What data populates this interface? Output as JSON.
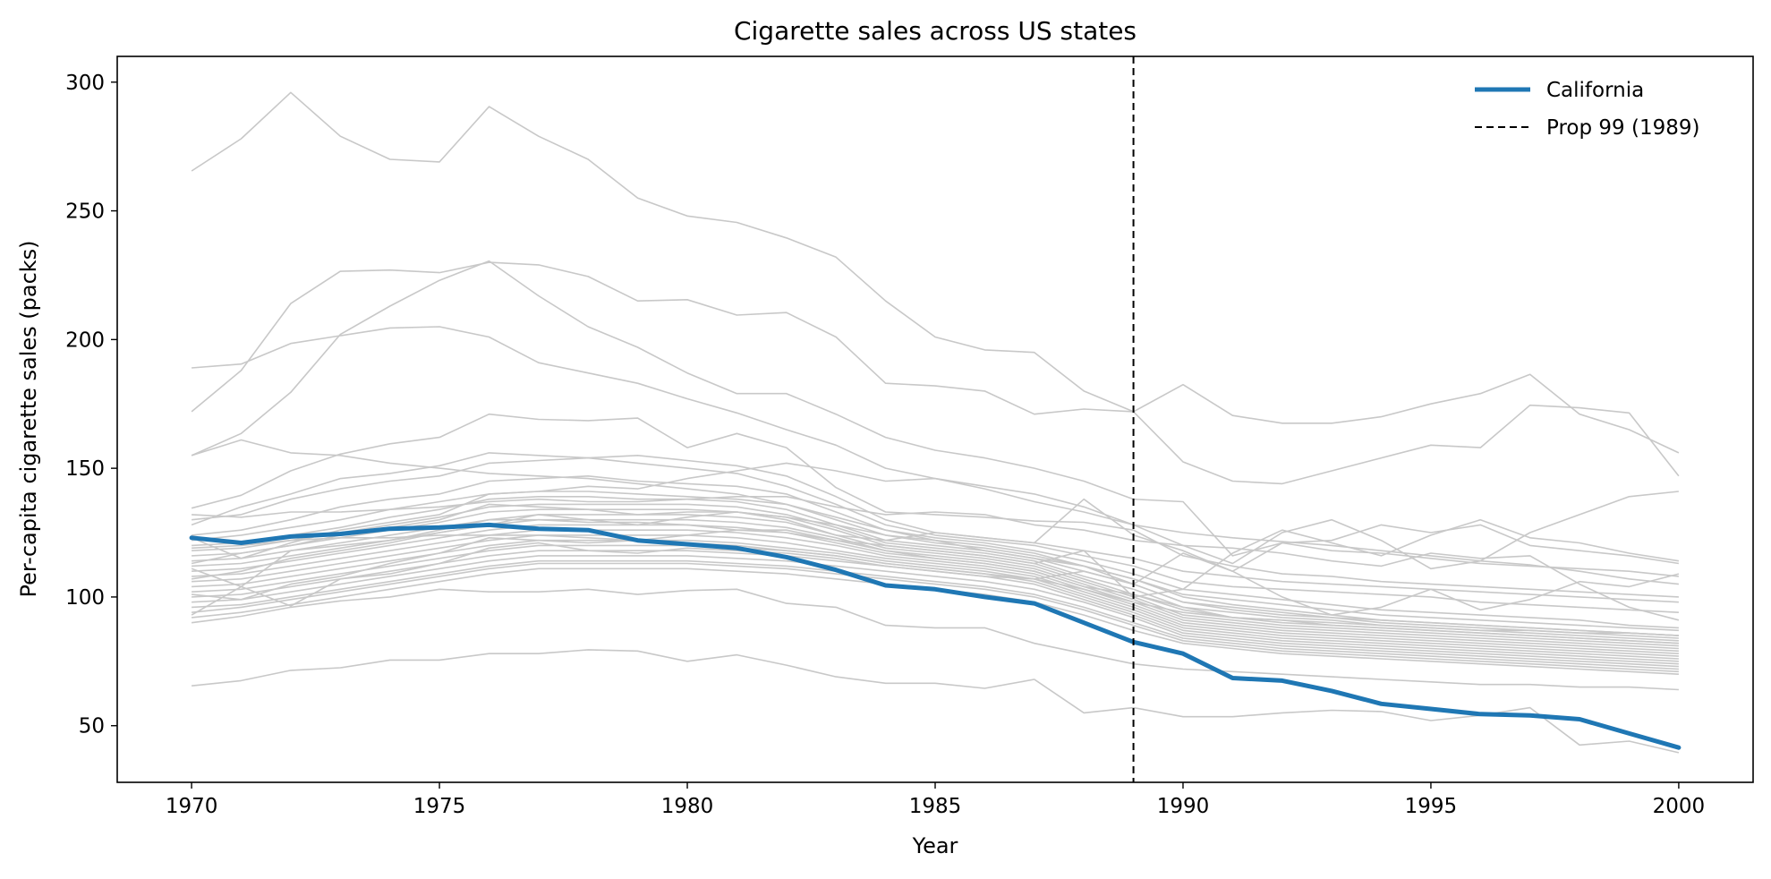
{
  "chart_data": {
    "type": "line",
    "title": "Cigarette sales across US states",
    "xlabel": "Year",
    "ylabel": "Per-capita cigarette sales (packs)",
    "xlim": [
      1968.5,
      2001.5
    ],
    "ylim": [
      28,
      310
    ],
    "x_ticks": [
      1970,
      1975,
      1980,
      1985,
      1990,
      1995,
      2000
    ],
    "y_ticks": [
      50,
      100,
      150,
      200,
      250,
      300
    ],
    "x": [
      1970,
      1971,
      1972,
      1973,
      1974,
      1975,
      1976,
      1977,
      1978,
      1979,
      1980,
      1981,
      1982,
      1983,
      1984,
      1985,
      1986,
      1987,
      1988,
      1989,
      1990,
      1991,
      1992,
      1993,
      1994,
      1995,
      1996,
      1997,
      1998,
      1999,
      2000
    ],
    "highlight_series": {
      "name": "California",
      "color": "#1f77b4",
      "values": [
        123,
        121,
        123.5,
        124.5,
        126.5,
        127,
        128,
        126.5,
        126,
        122,
        120.5,
        119,
        115.5,
        110.5,
        104.5,
        103,
        100,
        97.5,
        90,
        82.5,
        78,
        68.5,
        67.5,
        63.5,
        58.5,
        56.5,
        54.5,
        54,
        52.5,
        47,
        41.5
      ]
    },
    "vline": {
      "x": 1989,
      "label": "Prop 99 (1989)",
      "color": "#000000"
    },
    "background_series_color": "#c8c8c8",
    "background_series": [
      {
        "values": [
          265.5,
          278,
          296,
          279,
          270,
          269,
          290.5,
          279,
          270,
          255,
          248,
          245.5,
          239.5,
          232,
          215,
          201,
          196,
          195,
          180,
          172,
          182.5,
          170.5,
          167.5,
          167.5,
          170,
          175,
          179,
          186.5,
          171,
          165,
          156
        ]
      },
      {
        "values": [
          189,
          190.5,
          198.5,
          201.5,
          204.5,
          205,
          201,
          191,
          187,
          183,
          177,
          171.5,
          165,
          159,
          150,
          146,
          142,
          137,
          133,
          128,
          125,
          123,
          121.5,
          120,
          118,
          116,
          114,
          112.5,
          110,
          107,
          105
        ]
      },
      {
        "values": [
          172,
          188,
          214,
          226.5,
          227,
          226,
          230,
          229,
          224.5,
          215,
          215.5,
          209.5,
          210.5,
          201,
          183,
          182,
          180,
          171,
          173,
          172,
          152.5,
          145,
          144,
          149,
          154,
          159,
          158,
          174.5,
          173.5,
          171.5,
          147
        ]
      },
      {
        "values": [
          155,
          163.5,
          179.5,
          202,
          213,
          223,
          230.5,
          217,
          205,
          197,
          187,
          179,
          179,
          171,
          162,
          157,
          154,
          150,
          145,
          138,
          137,
          116,
          121,
          118,
          117,
          115,
          113,
          112,
          111,
          110,
          108
        ]
      },
      {
        "values": [
          155,
          161,
          156,
          155,
          152,
          150,
          148,
          147,
          146,
          144,
          142,
          140,
          136,
          131,
          126,
          122,
          118,
          115,
          112,
          105,
          98,
          95,
          93,
          92,
          91,
          90,
          89,
          88,
          87,
          86,
          85
        ]
      },
      {
        "values": [
          134.5,
          139.5,
          149,
          155.5,
          159.5,
          162,
          171,
          169,
          168.5,
          169.5,
          158,
          163.5,
          158,
          142.5,
          133,
          132,
          131,
          129.5,
          129,
          126,
          116,
          112,
          109,
          108,
          106,
          105,
          104,
          103,
          102,
          101,
          100
        ]
      },
      {
        "values": [
          130,
          132,
          138,
          142,
          145,
          147,
          152,
          153,
          154,
          155,
          153,
          151,
          147,
          139,
          130,
          125,
          123,
          121,
          118,
          115,
          110,
          108,
          106,
          105,
          104,
          103,
          102,
          101,
          100,
          99,
          98
        ]
      },
      {
        "values": [
          128,
          135,
          140,
          146,
          148,
          151,
          156,
          155,
          154,
          152,
          150,
          148,
          143,
          136,
          128,
          124,
          122,
          120,
          116,
          112,
          106,
          104,
          103,
          102,
          101,
          100,
          98,
          97,
          96,
          95,
          94
        ]
      },
      {
        "values": [
          124,
          126,
          130,
          135,
          138,
          140,
          145,
          146,
          147,
          145,
          144,
          143,
          140,
          133,
          126,
          123,
          121,
          118,
          114,
          109,
          103,
          101,
          99,
          97,
          95,
          94,
          93,
          92,
          91,
          89,
          88
        ]
      },
      {
        "values": [
          122,
          124,
          127,
          130,
          134,
          137,
          140,
          141,
          141,
          140,
          139,
          138,
          136,
          130,
          124,
          121,
          119,
          116,
          112,
          107,
          101,
          99,
          97,
          95,
          93,
          92,
          91,
          90,
          89,
          88,
          87
        ]
      },
      {
        "values": [
          120,
          121,
          124,
          127,
          131,
          134,
          138,
          139,
          139,
          138,
          138,
          137,
          134,
          128,
          122,
          120,
          118,
          115,
          110,
          105,
          98,
          96,
          94,
          92,
          90,
          89,
          88,
          87,
          86,
          85,
          84
        ]
      },
      {
        "values": [
          118,
          119,
          122,
          125,
          128,
          131,
          135,
          136,
          136,
          136,
          136,
          135,
          132,
          127,
          121,
          119,
          117,
          114,
          108,
          103,
          96,
          94,
          92,
          91,
          89,
          88,
          87,
          86,
          85,
          84,
          83
        ]
      },
      {
        "values": [
          116,
          117,
          120,
          123,
          126,
          129,
          133,
          134,
          134,
          134,
          134,
          133,
          131,
          126,
          120,
          118,
          116,
          113,
          107,
          101,
          95,
          92,
          91,
          89,
          88,
          87,
          86,
          85,
          84,
          83,
          82
        ]
      },
      {
        "values": [
          114,
          115,
          118,
          121,
          124,
          127,
          130,
          132,
          132,
          132,
          132,
          131,
          129,
          124,
          119,
          117,
          115,
          112,
          106,
          100,
          93,
          91,
          89,
          88,
          87,
          86,
          85,
          84,
          83,
          82,
          81
        ]
      },
      {
        "values": [
          112,
          113,
          116,
          119,
          122,
          125,
          128,
          130,
          130,
          130,
          130,
          129,
          127,
          123,
          118,
          116,
          114,
          111,
          105,
          99,
          92,
          90,
          88,
          87,
          86,
          85,
          84,
          83,
          82,
          81,
          80
        ]
      },
      {
        "values": [
          110,
          111,
          114,
          117,
          120,
          123,
          126,
          128,
          128,
          128,
          128,
          127,
          125,
          121,
          117,
          115,
          113,
          110,
          104,
          98,
          91,
          89,
          87,
          86,
          85,
          84,
          83,
          82,
          81,
          80,
          79
        ]
      },
      {
        "values": [
          108,
          109,
          112,
          115,
          118,
          121,
          124,
          126,
          126,
          126,
          126,
          125,
          123,
          120,
          116,
          114,
          112,
          109,
          103,
          97,
          90,
          88,
          86,
          85,
          84,
          83,
          82,
          81,
          80,
          79,
          78
        ]
      },
      {
        "values": [
          106,
          107,
          110,
          113,
          116,
          119,
          122,
          124,
          124,
          124,
          124,
          123,
          121,
          118,
          115,
          113,
          111,
          108,
          102,
          96,
          89,
          87,
          85,
          84,
          83,
          82,
          81,
          80,
          79,
          78,
          77
        ]
      },
      {
        "values": [
          104,
          105,
          108,
          111,
          114,
          117,
          120,
          122,
          122,
          122,
          122,
          121,
          119,
          117,
          114,
          112,
          110,
          107,
          101,
          95,
          88,
          86,
          84,
          83,
          82,
          81,
          80,
          79,
          78,
          77,
          76
        ]
      },
      {
        "values": [
          102,
          103,
          106,
          109,
          112,
          115,
          118,
          120,
          120,
          120,
          120,
          119,
          118,
          116,
          113,
          111,
          109,
          106,
          100,
          94,
          87,
          85,
          83,
          82,
          81,
          80,
          79,
          78,
          77,
          76,
          75
        ]
      },
      {
        "values": [
          100,
          101,
          104,
          107,
          110,
          113,
          116,
          118,
          118,
          118,
          118,
          117,
          116,
          114,
          112,
          110,
          108,
          105,
          99,
          93,
          86,
          84,
          82,
          81,
          80,
          79,
          78,
          77,
          76,
          75,
          74
        ]
      },
      {
        "values": [
          98,
          99,
          102,
          105,
          108,
          111,
          114,
          116,
          116,
          116,
          116,
          115,
          114,
          112,
          110,
          108,
          106,
          103,
          98,
          92,
          85,
          83,
          81,
          80,
          79,
          78,
          77,
          76,
          75,
          74,
          73
        ]
      },
      {
        "values": [
          96,
          97,
          100,
          103,
          106,
          109,
          112,
          114,
          114,
          114,
          114,
          113,
          112,
          110,
          108,
          106,
          104,
          101,
          96,
          90,
          84,
          82,
          80,
          79,
          78,
          77,
          76,
          75,
          74,
          73,
          72
        ]
      },
      {
        "values": [
          94,
          96,
          99,
          102,
          105,
          108,
          111,
          113,
          113,
          113,
          113,
          112,
          111,
          109,
          107,
          105,
          103,
          100,
          95,
          89,
          83,
          81,
          79,
          78,
          77,
          76,
          75,
          74,
          73,
          72,
          71
        ]
      },
      {
        "values": [
          92,
          94,
          97,
          100,
          103,
          106,
          109,
          111,
          111,
          111,
          111,
          110,
          109,
          107,
          105,
          103,
          101,
          98,
          93,
          87,
          82,
          80,
          78,
          77,
          76,
          75,
          74,
          73,
          72,
          71,
          70
        ]
      },
      {
        "values": [
          90,
          92.5,
          96,
          98.5,
          100,
          103,
          102,
          102,
          103,
          101,
          102.5,
          103,
          97.5,
          96,
          89,
          88,
          88,
          82,
          78,
          74,
          72,
          71,
          70,
          69,
          68,
          67,
          66,
          66,
          65,
          65,
          64
        ]
      },
      {
        "values": [
          93,
          104,
          96.5,
          107,
          109,
          113,
          119,
          121,
          118,
          117,
          119,
          118,
          117,
          115,
          112,
          110,
          108,
          107,
          110,
          105,
          117,
          110,
          121,
          122,
          128,
          125,
          128,
          120,
          118,
          116,
          113
        ]
      },
      {
        "values": [
          111,
          104,
          118,
          120,
          122,
          126,
          130,
          130,
          129,
          129,
          128,
          126,
          125,
          122,
          120,
          118,
          116,
          113,
          118,
          100,
          103,
          117,
          126,
          121,
          116,
          124,
          130,
          123,
          121,
          117,
          114
        ]
      },
      {
        "values": [
          107,
          110,
          115,
          118,
          121,
          125,
          128,
          132,
          130,
          128,
          131,
          133,
          130,
          124,
          122,
          125,
          123,
          121,
          138,
          124,
          118,
          110,
          100,
          93,
          96,
          103,
          95,
          99,
          106,
          104,
          109
        ]
      },
      {
        "values": [
          123,
          115,
          121,
          126,
          129,
          132,
          140,
          141,
          143,
          142,
          146,
          149,
          152,
          149,
          145,
          146,
          143,
          140,
          135,
          128,
          120,
          119,
          117,
          114,
          112,
          117,
          115,
          116,
          105,
          96,
          91
        ]
      },
      {
        "values": [
          132,
          131,
          133,
          133,
          134,
          135,
          137,
          138,
          137,
          137,
          138,
          139,
          139,
          135,
          132,
          133,
          132,
          128,
          126,
          122,
          120,
          113,
          125,
          130,
          122,
          111,
          114,
          125,
          132,
          139,
          141
        ]
      },
      {
        "values": [
          65.5,
          67.5,
          71.5,
          72.5,
          75.5,
          75.5,
          78,
          78,
          79.5,
          79,
          75,
          77.5,
          73.5,
          69,
          66.5,
          66.5,
          64.5,
          68,
          55,
          57,
          53.5,
          53.5,
          55,
          56,
          55.5,
          52,
          54,
          57,
          42.5,
          44,
          39.5
        ]
      },
      {
        "values": [
          101,
          99,
          105,
          108,
          113,
          117,
          123,
          122,
          121,
          122,
          124,
          126,
          126,
          122,
          118,
          115,
          113,
          110,
          104,
          101,
          96,
          92,
          90,
          89,
          88,
          87,
          86,
          85,
          84,
          83,
          82
        ]
      },
      {
        "values": [
          113,
          117,
          120,
          124,
          127,
          130,
          136,
          135,
          134,
          132,
          133,
          133,
          131,
          128,
          124,
          122,
          120,
          117,
          112,
          107,
          100,
          97,
          95,
          93,
          91,
          90,
          89,
          88,
          87,
          86,
          85
        ]
      },
      {
        "values": [
          119,
          120,
          122,
          123,
          123,
          124,
          124,
          124,
          123,
          122,
          121,
          120,
          118,
          116,
          113,
          111,
          109,
          107,
          103,
          98,
          94,
          92,
          91,
          90,
          89,
          88,
          87,
          87,
          86,
          86,
          85
        ]
      }
    ],
    "legend": {
      "position": "top-right",
      "entries": [
        {
          "label": "California",
          "style": "solid",
          "color": "#1f77b4"
        },
        {
          "label": "Prop 99 (1989)",
          "style": "dashed",
          "color": "#000000"
        }
      ]
    }
  }
}
